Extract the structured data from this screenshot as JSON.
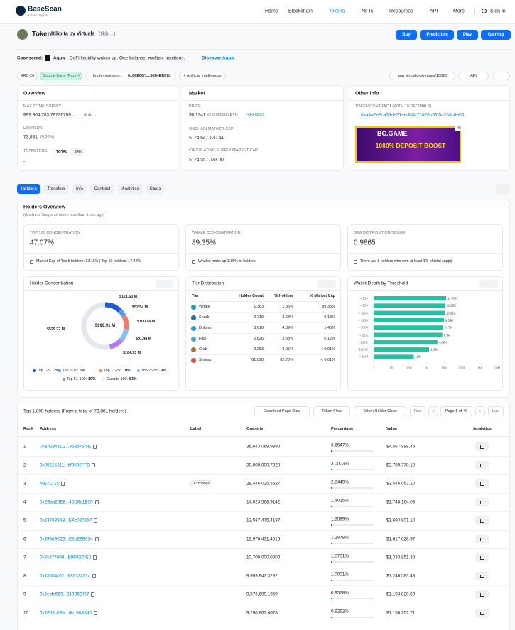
{
  "header": {
    "logo": "BaseScan",
    "logo_sub": "A Base Original",
    "nav": [
      "Home",
      "Blockchain",
      "Tokens",
      "NFTs",
      "Resources",
      "API",
      "More",
      "Sign In"
    ]
  },
  "token": {
    "label": "Token",
    "name": "Ribbita by Virtuals",
    "symbol": "(tibbi...)",
    "buttons": [
      "Buy",
      "Prediction",
      "Play",
      "Gaming"
    ]
  },
  "sponsored": {
    "label": "Sponsored:",
    "brand": "Aqua",
    "text": "- DeFi liquidity wakes up. One balance, multiple positions.",
    "link": "Discover Aqua"
  },
  "tags": {
    "erc": "ERC-20",
    "source": "Source Code (Proxy)",
    "impl_label": "Implementation:",
    "impl": "0x66E06(1...8584EE87b",
    "ai": "# Artificial Intelligence",
    "site": "app.virtuals.io/virtuals/18820",
    "api": "API"
  },
  "overview": {
    "title": "Overview",
    "supply_label": "MAX TOTAL SUPPLY",
    "supply": "999,904,783.79736799...",
    "supply_symbol": "tibbi...",
    "holders_label": "HOLDERS",
    "holders": "73,881",
    "holders_change": "(0.00%)",
    "transfers_label": "TRANSFERS",
    "toggle": [
      "TOTAL",
      "24H"
    ],
    "transfers": "-"
  },
  "market": {
    "title": "Market",
    "price_label": "PRICE",
    "price": "$0.1247",
    "price_eth": "@ 0.000065 ETH",
    "price_change": "(+20.60%)",
    "onchain_label": "ONCHAIN MARKET CAP",
    "onchain": "$124,647,130.44",
    "circ_label": "CIRCULATING SUPPLY MARKET CAP",
    "circ": "$124,557,033.00"
  },
  "other": {
    "title": "Other Info",
    "contract_label": "TOKEN CONTRACT (WITH 18 DECIMALS)",
    "contract": "0xa4a2e2ca3fbfe21aed83471d28b6f65a233c6e00",
    "ad_brand": "BC.GAME",
    "ad_text": "1080% DEPOSIT BOOST",
    "ad_tag": "Ad"
  },
  "tabs": [
    "Holders",
    "Transfers",
    "Info",
    "Contract",
    "Analytics",
    "Cards"
  ],
  "holders_overview": {
    "title": "Holders Overview",
    "subtitle": "(Analytics Snapshot taken less than 1 sec ago)",
    "stats": [
      {
        "label": "TOP 100 CONCENTRATION",
        "value": "47.07%",
        "footer": "Market Cap of Top 5 holders: 12.16% | Top 10 holders: 17.42%"
      },
      {
        "label": "WHALE CONCENTRATION",
        "value": "89.35%",
        "footer": "Whales make up 1.85% of holders"
      },
      {
        "label": "GINI DISTRIBUTION SCORE",
        "value": "0.9865",
        "footer": "There are 8 holders who own at least 1% of total supply"
      }
    ]
  },
  "donut": {
    "type": "donut",
    "title": "Holder Concentration",
    "total": "$999.91 M",
    "segments": [
      {
        "name": "Top 1-5:",
        "value": 12,
        "value_label": "12%",
        "amount": "$121.63 M",
        "color": "#1f5ad6"
      },
      {
        "name": "Top 6-10:",
        "value": 5,
        "value_label": "5%",
        "amount": "$52.54 M",
        "color": "#5a9af3"
      },
      {
        "name": "Top 11-25:",
        "value": 10,
        "value_label": "10%",
        "amount": "$100.14 M",
        "color": "#f27b6c"
      },
      {
        "name": "Top 26-50:",
        "value": 9,
        "value_label": "9%",
        "amount": "$91.44 M",
        "color": "#86bcf7"
      },
      {
        "name": "Top 51-100:",
        "value": 10,
        "value_label": "10%",
        "amount": "$104.93 M",
        "color": "#b07cf0"
      },
      {
        "name": "Outside 100:",
        "value": 53,
        "value_label": "53%",
        "amount": "$529.22 M",
        "color": "#e3e7ed"
      }
    ]
  },
  "tiers": {
    "title": "Tier Distribution",
    "columns": [
      "Tier",
      "Holder Count",
      "% Holders",
      "% Market Cap"
    ],
    "rows": [
      [
        "Whale",
        "1,363",
        "1.85%",
        "89.35%"
      ],
      [
        "Shark",
        "2,719",
        "3.68%",
        "9.13%"
      ],
      [
        "Dolphin",
        "3,616",
        "4.89%",
        "1.40%"
      ],
      [
        "Fish",
        "2,826",
        "3.83%",
        "0.12%"
      ],
      [
        "Crab",
        "2,253",
        "3.05%",
        "< 0.01%"
      ],
      [
        "Shrimp",
        "61,098",
        "82.70%",
        "< 0.01%"
      ]
    ]
  },
  "wallet_depth": {
    "type": "bar",
    "orientation": "horizontal",
    "title": "Wallet Depth by Threshold",
    "log_scale": true,
    "color": "#21c4a0",
    "categories": [
      "> $10",
      "> $50",
      "> $100",
      "> $250",
      "> $500",
      "> $1K",
      "> $10K",
      "> $100K",
      "> $1M"
    ],
    "values": [
      12780,
      11280,
      10520,
      9550,
      8720,
      7700,
      4080,
      1380,
      188
    ],
    "value_labels": [
      "12.78K",
      "11.28K",
      "10.52K",
      "9.55K",
      "8.72K",
      "7.7K",
      "4.08K",
      "1.38K",
      "188"
    ],
    "xlim": [
      1,
      10000000
    ],
    "xticks": [
      1,
      10,
      100,
      {
        "value": 1000,
        "label": "1K"
      },
      {
        "value": 10000,
        "label": "10K"
      },
      {
        "value": 100000,
        "label": "100K"
      },
      {
        "value": 1000000,
        "label": "1M"
      },
      {
        "value": 10000000,
        "label": "10M"
      }
    ]
  },
  "holders_table": {
    "title": "Top 1,000 holders (From a total of 73,881 holders)",
    "buttons": [
      "Download Page Data",
      "Token Flow",
      "Token Holder Chart"
    ],
    "pager": [
      "First",
      "<",
      "Page 1 of 40",
      ">",
      "Last"
    ],
    "columns": [
      "Rank",
      "Address",
      "Label",
      "Quantity",
      "Percentage",
      "Value",
      "Analytics"
    ],
    "rows": [
      {
        "rank": 1,
        "address": "0xB43341D2...353d75f5E",
        "quantity": "36,643,069.9390",
        "percentage": "3.6647%",
        "value": "$4,567,888.46"
      },
      {
        "rank": 2,
        "address": "0x95615211...bf0592FF8",
        "quantity": "30,000,000.7920",
        "percentage": "3.0003%",
        "value": "$3,739,770.10"
      },
      {
        "rank": 3,
        "address": "MEXC 15",
        "label": "Exchange",
        "quantity": "28,446,025.5527",
        "percentage": "2.8449%",
        "value": "$3,546,053.10"
      },
      {
        "rank": 4,
        "address": "0xE3aa26E8...45D8e1B50",
        "quantity": "14,023,568.9142",
        "percentage": "1.4025%",
        "value": "$1,748,164.08"
      },
      {
        "rank": 5,
        "address": "0x637685A8...EAc030657",
        "quantity": "13,587,475.4187",
        "percentage": "1.3589%",
        "value": "$1,693,801.10"
      },
      {
        "rank": 6,
        "address": "0x398d9C23...E3bE8B034",
        "quantity": "12,976,431.4516",
        "percentage": "1.2978%",
        "value": "$1,617,628.97"
      },
      {
        "rank": 7,
        "address": "0x7c377699...E9F92DfE2",
        "quantity": "10,700,000.0000",
        "percentage": "1.0701%",
        "value": "$1,333,851.30"
      },
      {
        "rank": 8,
        "address": "0x15554c62...68032331c",
        "quantity": "9,999,947.3282",
        "percentage": "1.0001%",
        "value": "$1,246,583.43"
      },
      {
        "rank": 9,
        "address": "0x5ecfd569...249B6Df37",
        "quantity": "9,576,689.1959",
        "percentage": "0.9578%",
        "value": "$1,193,820.50"
      },
      {
        "rank": 10,
        "address": "0x1F53c0Be...6b158A845",
        "quantity": "9,290,967.4678",
        "percentage": "0.9292%",
        "value": "$1,158,202.71"
      }
    ]
  }
}
